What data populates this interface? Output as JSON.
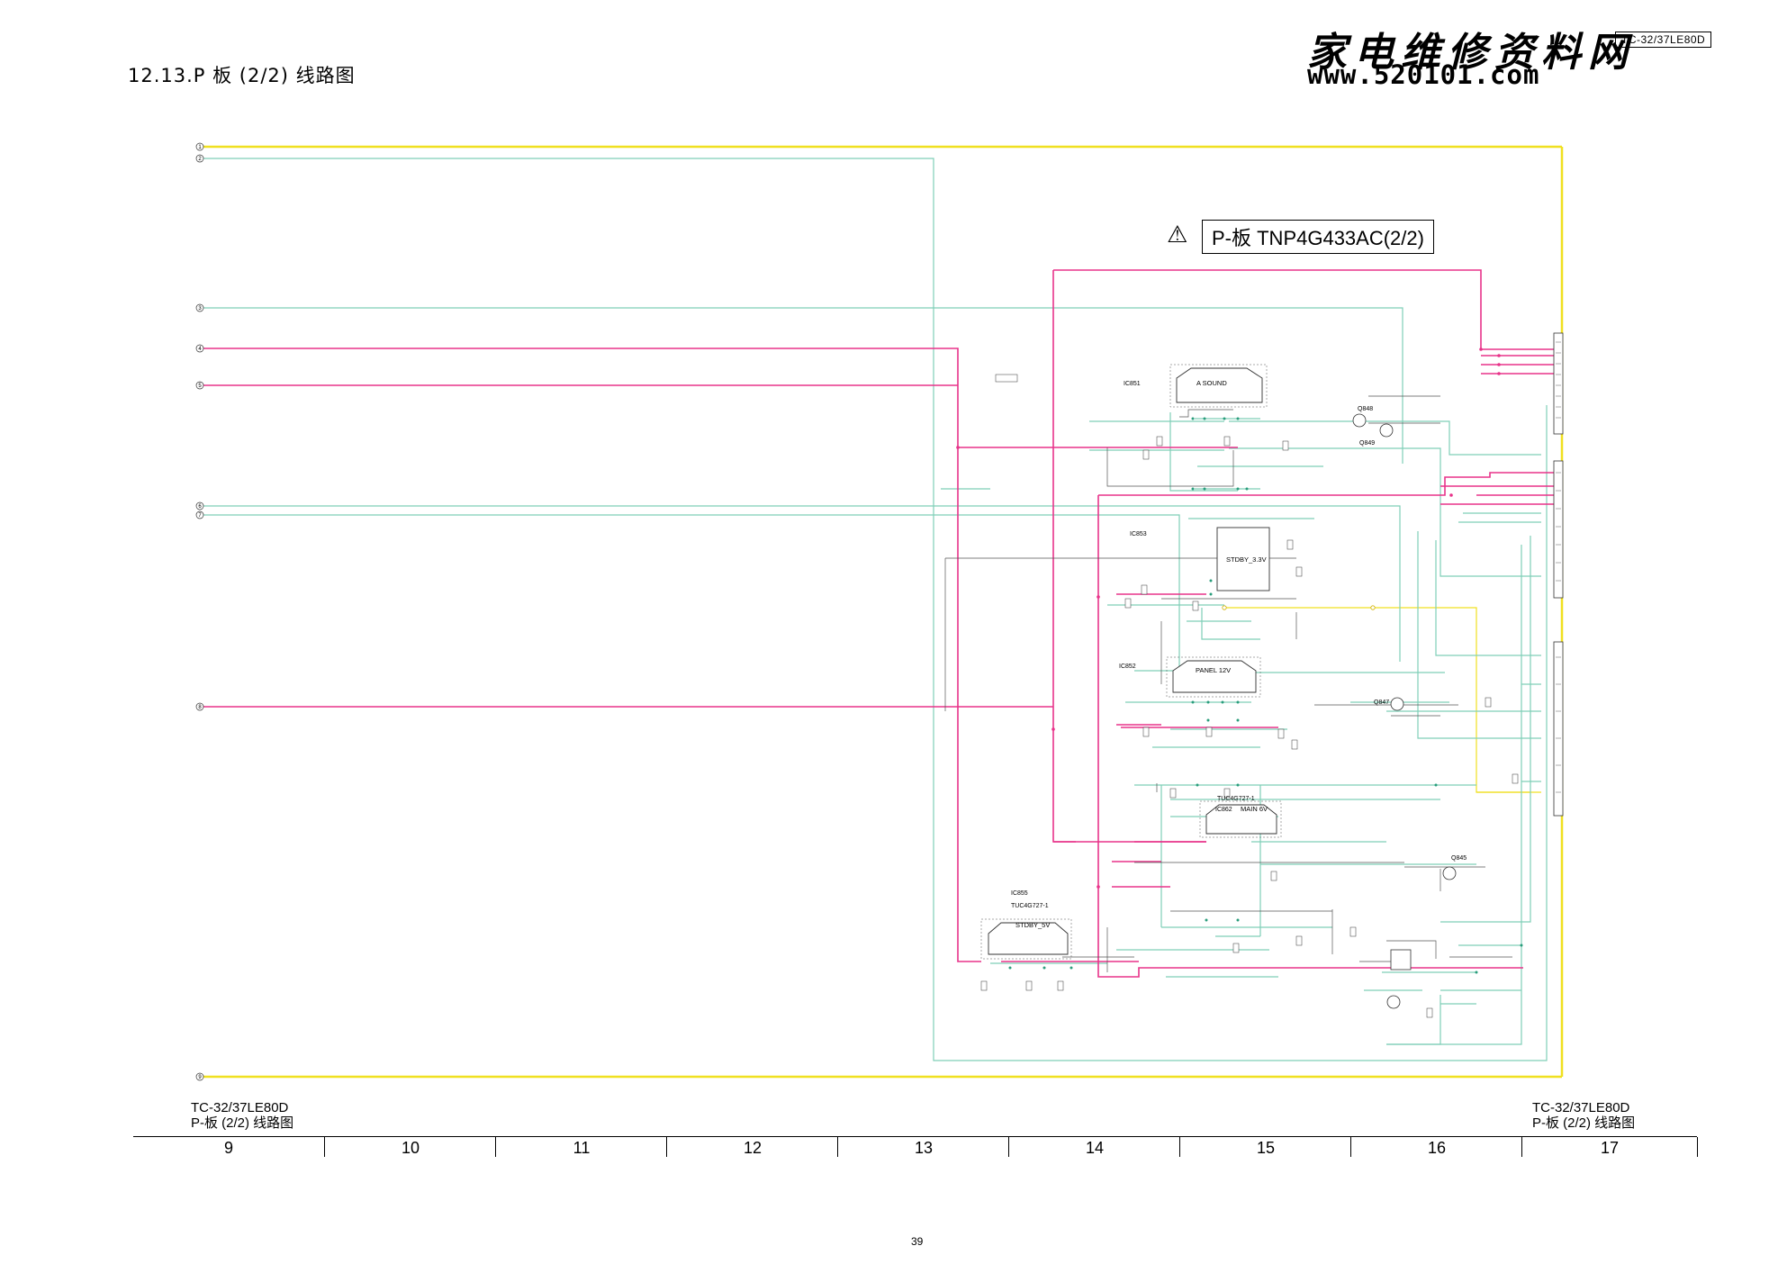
{
  "header": {
    "section_title": "12.13.P 板 (2/2) 线路图",
    "logo_chinese": "家电维修资料网",
    "logo_url": "www.520101.com",
    "model": "TC-32/37LE80D"
  },
  "board": {
    "warning_symbol": "⚠",
    "title": "P-板 TNP4G433AC(2/2)"
  },
  "blocks": [
    {
      "ref": "IC851",
      "name": "A SOUND"
    },
    {
      "ref": "IC853",
      "name": "STDBY_3.3V"
    },
    {
      "ref": "IC852",
      "name": "PANEL 12V"
    },
    {
      "ref": "IC862",
      "name": "MAIN 6V",
      "part": "TUC4G727-1"
    },
    {
      "ref": "IC855",
      "name": "STDBY_5V",
      "part": "TUC4G727-1"
    }
  ],
  "transistors": [
    "Q848",
    "Q849",
    "Q847",
    "Q845"
  ],
  "connector_numbers": [
    "1",
    "2",
    "3",
    "4",
    "5",
    "6",
    "7",
    "8",
    "9"
  ],
  "colors": {
    "yellow": "#f0e020",
    "pink": "#e8338a",
    "teal": "#7fcfb8",
    "dark": "#333333"
  },
  "footer": {
    "left_model": "TC-32/37LE80D",
    "left_title": "P-板 (2/2) 线路图",
    "right_model": "TC-32/37LE80D",
    "right_title": "P-板 (2/2) 线路图",
    "grid": [
      "9",
      "10",
      "11",
      "12",
      "13",
      "14",
      "15",
      "16",
      "17"
    ],
    "page_number": "39"
  }
}
